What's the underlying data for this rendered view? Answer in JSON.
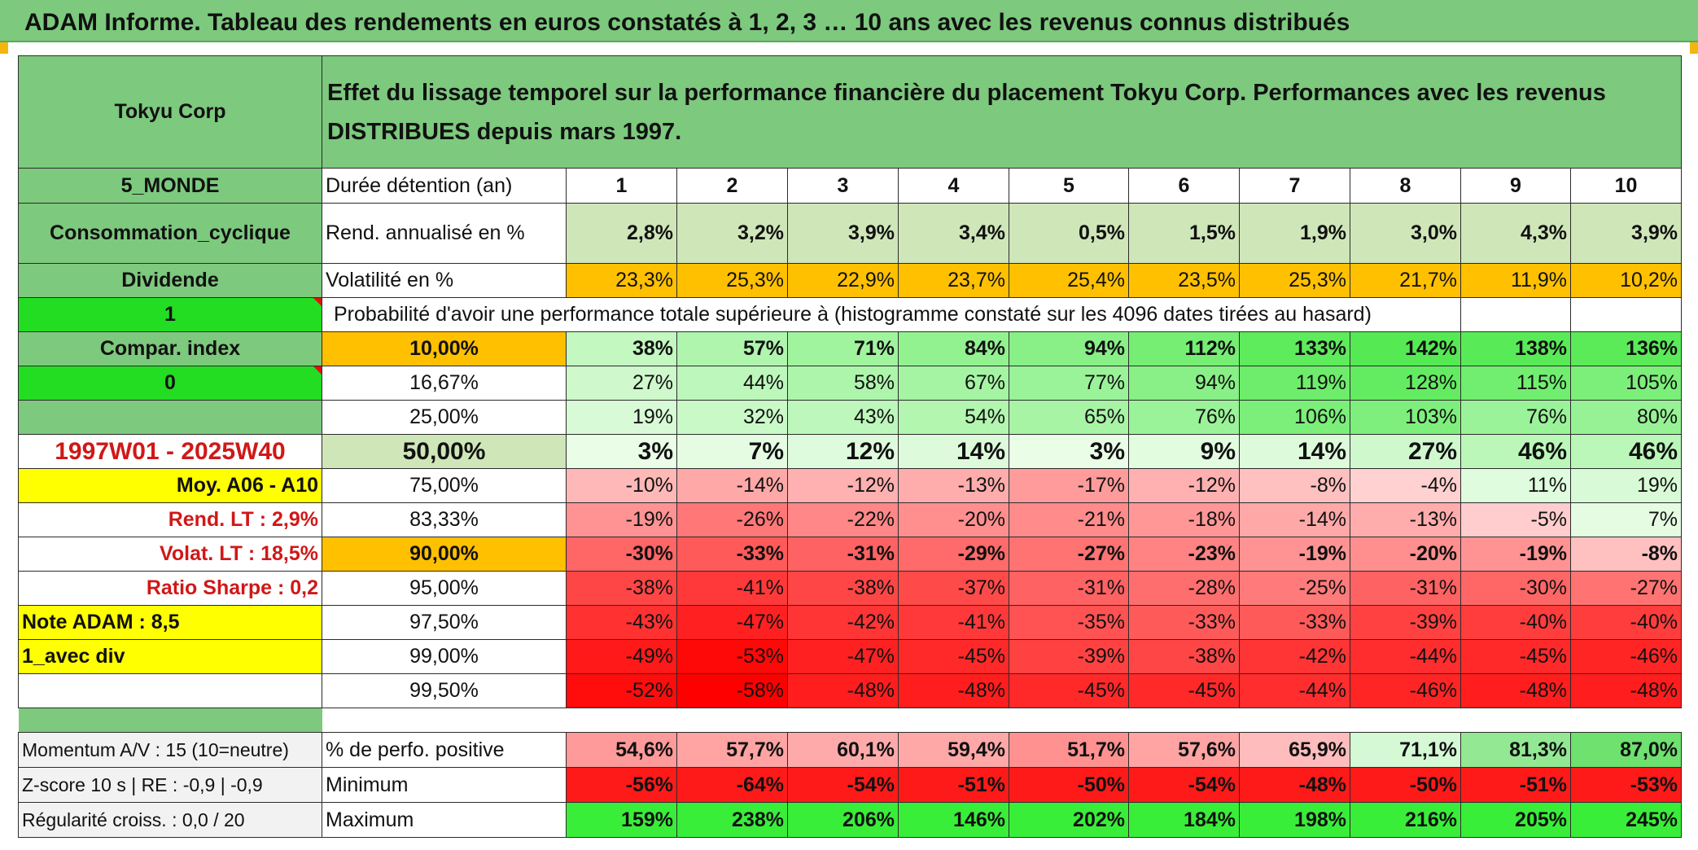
{
  "title": "ADAM Informe. Tableau des rendements en euros constatés à 1, 2, 3 … 10 ans avec les revenus connus distribués",
  "company": "Tokyu Corp",
  "effect_title": "Effet du lissage temporel sur la performance financière du placement Tokyu Corp. Performances avec les revenus DISTRIBUES depuis mars 1997.",
  "left_labels": {
    "region": "5_MONDE",
    "sector": "Consommation_cyclique",
    "dividend": "Dividende",
    "flag1": "1",
    "compar": "Compar. index",
    "flag0": "0",
    "period": "1997W01 - 2025W40",
    "moy": "Moy. A06 - A10",
    "rend_lt": "Rend. LT :    2,9%",
    "volat_lt": "Volat. LT :   18,5%",
    "sharpe": "Ratio Sharpe :    0,2",
    "note": "Note ADAM : 8,5",
    "avec_div": "1_avec div"
  },
  "row_labels": {
    "duration": "Durée détention (an)",
    "rend": "Rend. annualisé en %",
    "vol": "Volatilité en %",
    "proba": "Probabilité d'avoir une performance totale supérieure à (histogramme constaté sur les 4096 dates tirées au hasard)"
  },
  "years": [
    "1",
    "2",
    "3",
    "4",
    "5",
    "6",
    "7",
    "8",
    "9",
    "10"
  ],
  "rend_values": [
    "2,8%",
    "3,2%",
    "3,9%",
    "3,4%",
    "0,5%",
    "1,5%",
    "1,9%",
    "3,0%",
    "4,3%",
    "3,9%"
  ],
  "vol_values": [
    "23,3%",
    "25,3%",
    "22,9%",
    "23,7%",
    "25,4%",
    "23,5%",
    "25,3%",
    "21,7%",
    "11,9%",
    "10,2%"
  ],
  "percentile_rows": [
    {
      "label": "10,00%",
      "values": [
        "38%",
        "57%",
        "71%",
        "84%",
        "94%",
        "112%",
        "133%",
        "142%",
        "138%",
        "136%"
      ]
    },
    {
      "label": "16,67%",
      "values": [
        "27%",
        "44%",
        "58%",
        "67%",
        "77%",
        "94%",
        "119%",
        "128%",
        "115%",
        "105%"
      ]
    },
    {
      "label": "25,00%",
      "values": [
        "19%",
        "32%",
        "43%",
        "54%",
        "65%",
        "76%",
        "106%",
        "103%",
        "76%",
        "80%"
      ]
    },
    {
      "label": "50,00%",
      "values": [
        "3%",
        "7%",
        "12%",
        "14%",
        "3%",
        "9%",
        "14%",
        "27%",
        "46%",
        "46%"
      ]
    },
    {
      "label": "75,00%",
      "values": [
        "-10%",
        "-14%",
        "-12%",
        "-13%",
        "-17%",
        "-12%",
        "-8%",
        "-4%",
        "11%",
        "19%"
      ]
    },
    {
      "label": "83,33%",
      "values": [
        "-19%",
        "-26%",
        "-22%",
        "-20%",
        "-21%",
        "-18%",
        "-14%",
        "-13%",
        "-5%",
        "7%"
      ]
    },
    {
      "label": "90,00%",
      "values": [
        "-30%",
        "-33%",
        "-31%",
        "-29%",
        "-27%",
        "-23%",
        "-19%",
        "-20%",
        "-19%",
        "-8%"
      ]
    },
    {
      "label": "95,00%",
      "values": [
        "-38%",
        "-41%",
        "-38%",
        "-37%",
        "-31%",
        "-28%",
        "-25%",
        "-31%",
        "-30%",
        "-27%"
      ]
    },
    {
      "label": "97,50%",
      "values": [
        "-43%",
        "-47%",
        "-42%",
        "-41%",
        "-35%",
        "-33%",
        "-33%",
        "-39%",
        "-40%",
        "-40%"
      ]
    },
    {
      "label": "99,00%",
      "values": [
        "-49%",
        "-53%",
        "-47%",
        "-45%",
        "-39%",
        "-38%",
        "-42%",
        "-44%",
        "-45%",
        "-46%"
      ]
    },
    {
      "label": "99,50%",
      "values": [
        "-52%",
        "-58%",
        "-48%",
        "-48%",
        "-45%",
        "-45%",
        "-44%",
        "-46%",
        "-48%",
        "-48%"
      ]
    }
  ],
  "stats": [
    {
      "left": "Momentum A/V : 15 (10=neutre)",
      "label": "% de perfo. positive",
      "values": [
        "54,6%",
        "57,7%",
        "60,1%",
        "59,4%",
        "51,7%",
        "57,6%",
        "65,9%",
        "71,1%",
        "81,3%",
        "87,0%"
      ]
    },
    {
      "left": "Z-score 10 s | RE : -0,9 | -0,9",
      "label": "Minimum",
      "values": [
        "-56%",
        "-64%",
        "-54%",
        "-51%",
        "-50%",
        "-54%",
        "-48%",
        "-50%",
        "-51%",
        "-53%"
      ]
    },
    {
      "left": "Régularité croiss. : 0,0 / 20",
      "label": "Maximum",
      "values": [
        "159%",
        "238%",
        "206%",
        "146%",
        "202%",
        "184%",
        "198%",
        "216%",
        "205%",
        "245%"
      ]
    }
  ],
  "colors": {
    "header_green": "#7dc97e",
    "bright_green": "#22dd22",
    "orange": "#ffc000",
    "yellow": "#ffff00",
    "red_text": "#d01818"
  }
}
